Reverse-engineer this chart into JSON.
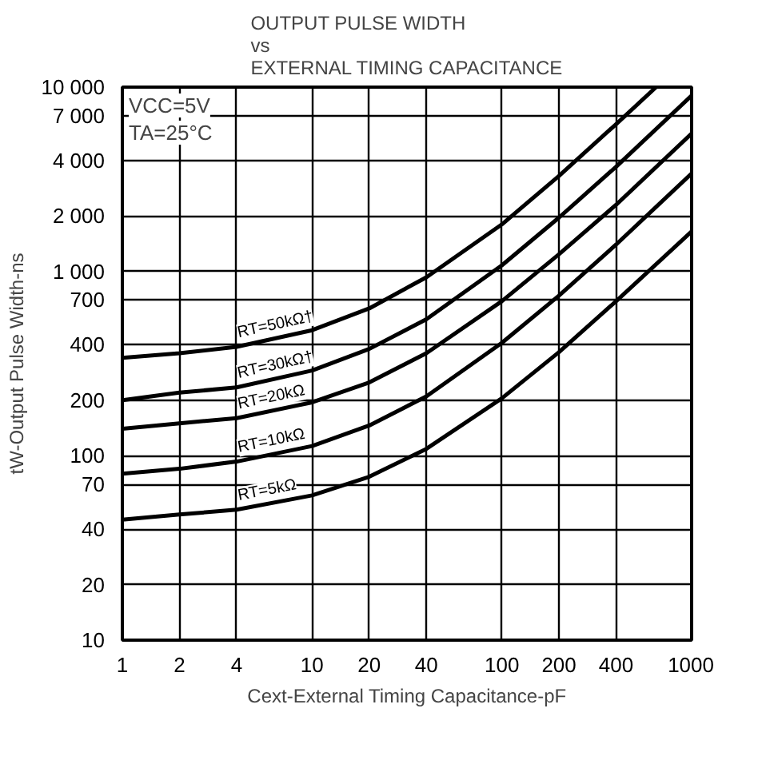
{
  "chart_data": {
    "type": "line",
    "title": "OUTPUT PULSE WIDTH\nvs\nEXTERNAL TIMING CAPACITANCE",
    "xlabel": "Cext-External Timing Capacitance-pF",
    "ylabel": "tW-Output Pulse Width-ns",
    "log": "xy",
    "xlim": [
      1,
      1000
    ],
    "ylim": [
      10,
      10000
    ],
    "xticks": [
      1,
      2,
      4,
      10,
      20,
      40,
      100,
      200,
      400,
      1000
    ],
    "yticks": [
      10,
      20,
      40,
      70,
      100,
      200,
      400,
      700,
      {
        "value": 1000,
        "label": "1 000"
      },
      {
        "value": 2000,
        "label": "2 000"
      },
      {
        "value": 4000,
        "label": "4 000"
      },
      {
        "value": 7000,
        "label": "7 000"
      },
      {
        "value": 10000,
        "label": "10 000"
      }
    ],
    "grid": true,
    "marker": "none",
    "line_style": "solid",
    "series": [
      {
        "name": "RT=50kΩ†",
        "color": "#000000",
        "x": [
          1,
          2,
          4,
          10,
          20,
          40,
          100,
          200,
          400,
          650
        ],
        "values": [
          340,
          360,
          390,
          480,
          630,
          930,
          1800,
          3300,
          6300,
          10000
        ]
      },
      {
        "name": "RT=30kΩ†",
        "color": "#000000",
        "x": [
          1,
          2,
          4,
          10,
          20,
          40,
          100,
          200,
          400,
          1000
        ],
        "values": [
          200,
          220,
          235,
          290,
          380,
          550,
          1080,
          1960,
          3700,
          9000
        ]
      },
      {
        "name": "RT=20kΩ",
        "color": "#000000",
        "x": [
          1,
          2,
          4,
          10,
          20,
          40,
          100,
          200,
          400,
          1000
        ],
        "values": [
          140,
          150,
          160,
          195,
          250,
          360,
          690,
          1240,
          2300,
          5600
        ]
      },
      {
        "name": "RT=10kΩ",
        "color": "#000000",
        "x": [
          1,
          2,
          4,
          10,
          20,
          40,
          100,
          200,
          400,
          1000
        ],
        "values": [
          80,
          85,
          93,
          113,
          146,
          210,
          410,
          740,
          1400,
          3400
        ]
      },
      {
        "name": "RT=5kΩ",
        "color": "#000000",
        "x": [
          1,
          2,
          4,
          10,
          20,
          40,
          100,
          200,
          400,
          1000
        ],
        "values": [
          45,
          48,
          51,
          61,
          77,
          109,
          205,
          365,
          690,
          1650
        ]
      }
    ],
    "annotations": [
      "VCC=5V",
      "TA=25°C"
    ]
  }
}
